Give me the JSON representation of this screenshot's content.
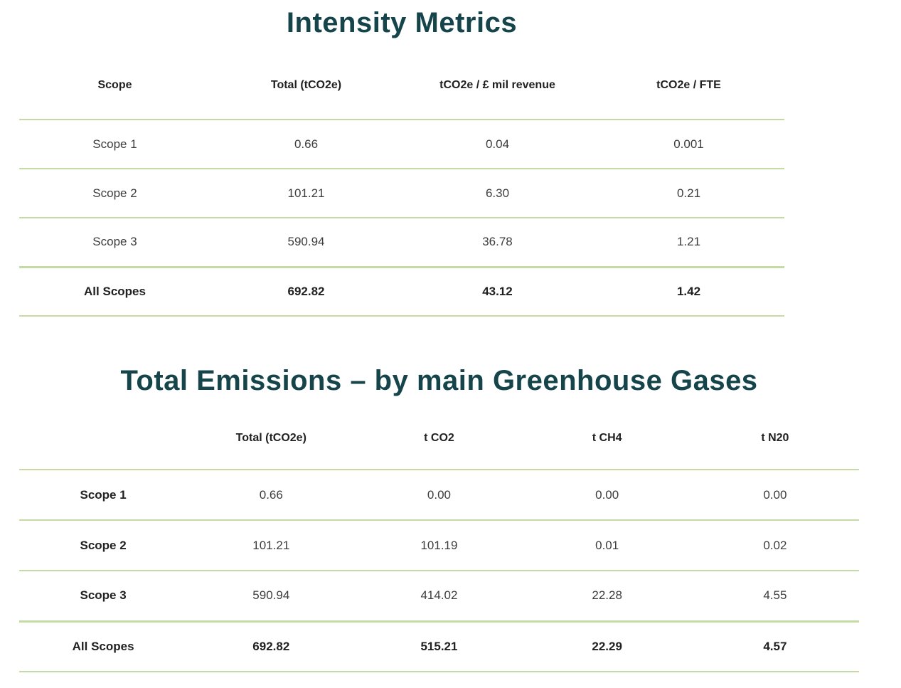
{
  "theme": {
    "title_color": "#16444b",
    "divider_color": "#c5dba4",
    "background": "#ffffff"
  },
  "intensity_metrics": {
    "title": "Intensity Metrics",
    "columns": [
      "Scope",
      "Total (tCO2e)",
      "tCO2e / £ mil revenue",
      "tCO2e / FTE"
    ],
    "rows": [
      {
        "scope": "Scope 1",
        "total": "0.66",
        "per_mil_revenue": "0.04",
        "per_fte": "0.001"
      },
      {
        "scope": "Scope 2",
        "total": "101.21",
        "per_mil_revenue": "6.30",
        "per_fte": "0.21"
      },
      {
        "scope": "Scope 3",
        "total": "590.94",
        "per_mil_revenue": "36.78",
        "per_fte": "1.21"
      }
    ],
    "total_row": {
      "scope": "All Scopes",
      "total": "692.82",
      "per_mil_revenue": "43.12",
      "per_fte": "1.42"
    }
  },
  "greenhouse_gases": {
    "title": "Total Emissions – by main Greenhouse Gases",
    "columns": [
      "",
      "Total (tCO2e)",
      "t CO2",
      "t CH4",
      "t N20"
    ],
    "rows": [
      {
        "scope": "Scope 1",
        "total": "0.66",
        "t_co2": "0.00",
        "t_ch4": "0.00",
        "t_n2o": "0.00"
      },
      {
        "scope": "Scope 2",
        "total": "101.21",
        "t_co2": "101.19",
        "t_ch4": "0.01",
        "t_n2o": "0.02"
      },
      {
        "scope": "Scope 3",
        "total": "590.94",
        "t_co2": "414.02",
        "t_ch4": "22.28",
        "t_n2o": "4.55"
      }
    ],
    "total_row": {
      "scope": "All Scopes",
      "total": "692.82",
      "t_co2": "515.21",
      "t_ch4": "22.29",
      "t_n2o": "4.57"
    }
  }
}
